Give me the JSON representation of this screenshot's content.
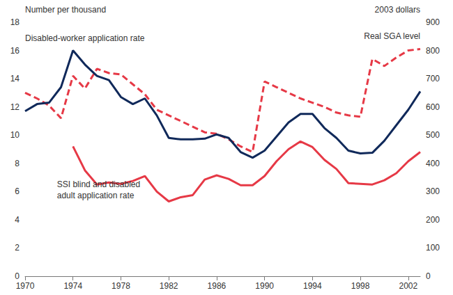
{
  "chart_data": {
    "type": "line",
    "ylabel": "Number per thousand",
    "y2label": "2003 dollars",
    "x": [
      1970,
      1971,
      1972,
      1973,
      1974,
      1975,
      1976,
      1977,
      1978,
      1979,
      1980,
      1981,
      1982,
      1983,
      1984,
      1985,
      1986,
      1987,
      1988,
      1989,
      1990,
      1991,
      1992,
      1993,
      1994,
      1995,
      1996,
      1997,
      1998,
      1999,
      2000,
      2001,
      2002,
      2003
    ],
    "xlim": [
      1970,
      2003
    ],
    "xticks": [
      1970,
      1974,
      1978,
      1982,
      1986,
      1990,
      1994,
      1998,
      2002
    ],
    "ylim": [
      0,
      18
    ],
    "yticks": [
      0,
      2,
      4,
      6,
      8,
      10,
      12,
      14,
      16,
      18
    ],
    "y2lim": [
      0,
      900
    ],
    "y2ticks": [
      0,
      100,
      200,
      300,
      400,
      500,
      600,
      700,
      800,
      900
    ],
    "grid": false,
    "series": [
      {
        "name": "Disabled-worker application rate",
        "color": "#10295a",
        "line_style": "solid",
        "values": [
          11.7,
          12.2,
          12.3,
          13.4,
          16.0,
          15.0,
          14.2,
          13.9,
          12.7,
          12.2,
          12.6,
          11.4,
          9.8,
          9.7,
          9.7,
          9.75,
          10.05,
          9.8,
          8.8,
          8.4,
          8.9,
          9.9,
          10.9,
          11.5,
          11.5,
          10.5,
          9.8,
          8.9,
          8.7,
          8.75,
          9.6,
          10.7,
          11.8,
          13.1
        ]
      },
      {
        "name": "SSI blind and disabled\nadult application rate",
        "color": "#e63946",
        "line_style": "solid",
        "values": [
          null,
          null,
          null,
          null,
          9.2,
          7.5,
          6.5,
          6.65,
          6.55,
          6.75,
          7.1,
          6.0,
          5.3,
          5.6,
          5.75,
          6.85,
          7.15,
          6.9,
          6.45,
          6.45,
          7.1,
          8.15,
          9.0,
          9.55,
          9.15,
          8.25,
          7.6,
          6.6,
          6.55,
          6.5,
          6.8,
          7.3,
          8.15,
          8.8
        ]
      },
      {
        "name": "Real SGA level",
        "color": "#e63946",
        "line_style": "dashed",
        "axis": "y2",
        "values": [
          650,
          630,
          605,
          560,
          710,
          665,
          735,
          720,
          715,
          680,
          645,
          590,
          570,
          550,
          530,
          510,
          505,
          485,
          460,
          440,
          690,
          670,
          650,
          630,
          615,
          600,
          580,
          570,
          565,
          770,
          745,
          775,
          800,
          805
        ]
      }
    ]
  }
}
